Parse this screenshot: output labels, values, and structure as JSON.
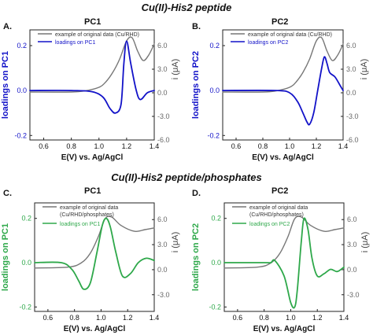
{
  "headings": {
    "top": "Cu(II)-His2 peptide",
    "bottom": "Cu(II)-His2 peptide/phosphates"
  },
  "chart_data": [
    {
      "type": "line",
      "panel_letter": "A.",
      "title": "PC1",
      "xlabel": "E(V) vs. Ag/AgCl",
      "ylabel_left": "loadings on PC1",
      "ylabel_right": "i (μA)",
      "xlim": [
        0.5,
        1.4
      ],
      "ylim_left": [
        -0.22,
        0.27
      ],
      "ylim_right": [
        -6.0,
        8.0
      ],
      "x_ticks": [
        "0.6",
        "0.8",
        "1.0",
        "1.2",
        "1.4"
      ],
      "y_ticks_left": [
        "-0.2",
        "0.0",
        "0.2"
      ],
      "y_ticks_right": [
        "-6.0",
        "-3.0",
        "0.0",
        "3.0",
        "6.0"
      ],
      "accent_color": "#1212c8",
      "legend": [
        "example of original data (Cu/RHD)",
        "loadings on PC1"
      ],
      "series": [
        {
          "name": "example of original data (Cu/RHD)",
          "axis": "right",
          "color": "#777777",
          "x": [
            0.5,
            0.8,
            0.9,
            1.0,
            1.05,
            1.1,
            1.15,
            1.2,
            1.24,
            1.28,
            1.32,
            1.36,
            1.4
          ],
          "y": [
            0.1,
            0.1,
            0.25,
            0.7,
            1.4,
            2.6,
            4.3,
            6.6,
            7.0,
            5.3,
            4.1,
            4.8,
            6.2
          ]
        },
        {
          "name": "loadings on PC1",
          "axis": "left",
          "color": "#1212c8",
          "x": [
            0.5,
            0.8,
            0.95,
            1.03,
            1.08,
            1.12,
            1.16,
            1.18,
            1.2,
            1.23,
            1.27,
            1.3,
            1.35,
            1.4
          ],
          "y": [
            0.0,
            0.0,
            -0.005,
            -0.03,
            -0.08,
            -0.1,
            -0.06,
            0.12,
            0.22,
            0.12,
            0.0,
            -0.04,
            -0.01,
            0.0
          ]
        }
      ]
    },
    {
      "type": "line",
      "panel_letter": "B.",
      "title": "PC2",
      "xlabel": "E(V) vs. Ag/AgCl",
      "ylabel_left": "loadings on PC2",
      "ylabel_right": "i (μA)",
      "xlim": [
        0.5,
        1.4
      ],
      "ylim_left": [
        -0.22,
        0.27
      ],
      "ylim_right": [
        -6.0,
        8.0
      ],
      "x_ticks": [
        "0.6",
        "0.8",
        "1.0",
        "1.2",
        "1.4"
      ],
      "y_ticks_left": [
        "-0.2",
        "0.0",
        "0.2"
      ],
      "y_ticks_right": [
        "-6.0",
        "-3.0",
        "0.0",
        "3.0",
        "6.0"
      ],
      "accent_color": "#1212c8",
      "legend": [
        "example of original data (Cu/RHD)",
        "loadings on PC2"
      ],
      "series": [
        {
          "name": "example of original data (Cu/RHD)",
          "axis": "right",
          "color": "#777777",
          "x": [
            0.5,
            0.8,
            0.9,
            1.0,
            1.05,
            1.1,
            1.15,
            1.2,
            1.24,
            1.28,
            1.32,
            1.36,
            1.4
          ],
          "y": [
            0.1,
            0.1,
            0.25,
            0.7,
            1.4,
            2.6,
            4.3,
            6.6,
            7.0,
            5.3,
            4.1,
            4.8,
            6.2
          ]
        },
        {
          "name": "loadings on PC2",
          "axis": "left",
          "color": "#1212c8",
          "x": [
            0.5,
            0.9,
            1.0,
            1.06,
            1.1,
            1.13,
            1.15,
            1.18,
            1.21,
            1.24,
            1.26,
            1.28,
            1.3,
            1.34,
            1.38,
            1.4
          ],
          "y": [
            0.0,
            0.0,
            -0.01,
            -0.05,
            -0.1,
            -0.14,
            -0.15,
            -0.1,
            0.0,
            0.1,
            0.15,
            0.12,
            0.08,
            0.06,
            0.02,
            0.0
          ]
        }
      ]
    },
    {
      "type": "line",
      "panel_letter": "C.",
      "title": "PC1",
      "xlabel": "E(V) vs. Ag/AgCl",
      "ylabel_left": "loadings on PC1",
      "ylabel_right": "i (μA)",
      "xlim": [
        0.5,
        1.4
      ],
      "ylim_left": [
        -0.22,
        0.27
      ],
      "ylim_right": [
        -5.0,
        8.0
      ],
      "x_ticks": [
        "0.6",
        "0.8",
        "1.0",
        "1.2",
        "1.4"
      ],
      "y_ticks_left": [
        "-0.2",
        "0.0",
        "0.2"
      ],
      "y_ticks_right": [
        "-3.0",
        "0.0",
        "3.0",
        "6.0"
      ],
      "accent_color": "#2ea84a",
      "legend": [
        "example of original data (Cu/RHD/phosphates)",
        "loadings on PC1"
      ],
      "series": [
        {
          "name": "example of original data (Cu/RHD/phosphates)",
          "axis": "right",
          "color": "#777777",
          "x": [
            0.5,
            0.75,
            0.85,
            0.92,
            0.98,
            1.03,
            1.08,
            1.15,
            1.25,
            1.33,
            1.4
          ],
          "y": [
            0.2,
            0.3,
            0.8,
            2.0,
            4.0,
            6.1,
            6.3,
            5.3,
            4.6,
            4.8,
            5.0
          ]
        },
        {
          "name": "loadings on PC1",
          "axis": "left",
          "color": "#2ea84a",
          "x": [
            0.5,
            0.7,
            0.78,
            0.83,
            0.87,
            0.92,
            0.97,
            1.01,
            1.04,
            1.07,
            1.11,
            1.16,
            1.22,
            1.28,
            1.34,
            1.4
          ],
          "y": [
            0.0,
            0.0,
            -0.03,
            -0.08,
            -0.12,
            -0.09,
            0.05,
            0.17,
            0.2,
            0.16,
            0.05,
            -0.06,
            -0.05,
            0.0,
            0.02,
            0.01
          ]
        }
      ]
    },
    {
      "type": "line",
      "panel_letter": "D.",
      "title": "PC2",
      "xlabel": "E(V) vs. Ag/AgCl",
      "ylabel_left": "loadings on PC2",
      "ylabel_right": "i (μA)",
      "xlim": [
        0.5,
        1.4
      ],
      "ylim_left": [
        -0.22,
        0.27
      ],
      "ylim_right": [
        -5.0,
        8.0
      ],
      "x_ticks": [
        "0.6",
        "0.8",
        "1.0",
        "1.2",
        "1.4"
      ],
      "y_ticks_left": [
        "-0.2",
        "0.0",
        "0.2"
      ],
      "y_ticks_right": [
        "-3.0",
        "0.0",
        "3.0",
        "6.0"
      ],
      "accent_color": "#2ea84a",
      "legend": [
        "example of original data (Cu/RHD/phosphates)",
        "loadings on PC2"
      ],
      "series": [
        {
          "name": "example of original data (Cu/RHD/phosphates)",
          "axis": "right",
          "color": "#777777",
          "x": [
            0.5,
            0.75,
            0.85,
            0.92,
            0.98,
            1.03,
            1.08,
            1.15,
            1.25,
            1.33,
            1.4
          ],
          "y": [
            0.2,
            0.3,
            0.8,
            2.0,
            4.0,
            6.1,
            6.3,
            5.3,
            4.6,
            4.8,
            5.0
          ]
        },
        {
          "name": "loadings on PC2",
          "axis": "left",
          "color": "#2ea84a",
          "x": [
            0.5,
            0.8,
            0.85,
            0.88,
            0.95,
            1.0,
            1.03,
            1.05,
            1.08,
            1.1,
            1.13,
            1.16,
            1.2,
            1.25,
            1.3,
            1.35,
            1.4
          ],
          "y": [
            0.0,
            0.0,
            0.0,
            0.01,
            -0.06,
            -0.18,
            -0.2,
            -0.12,
            0.1,
            0.2,
            0.15,
            0.02,
            -0.06,
            -0.05,
            -0.03,
            -0.04,
            -0.02
          ]
        }
      ]
    }
  ]
}
